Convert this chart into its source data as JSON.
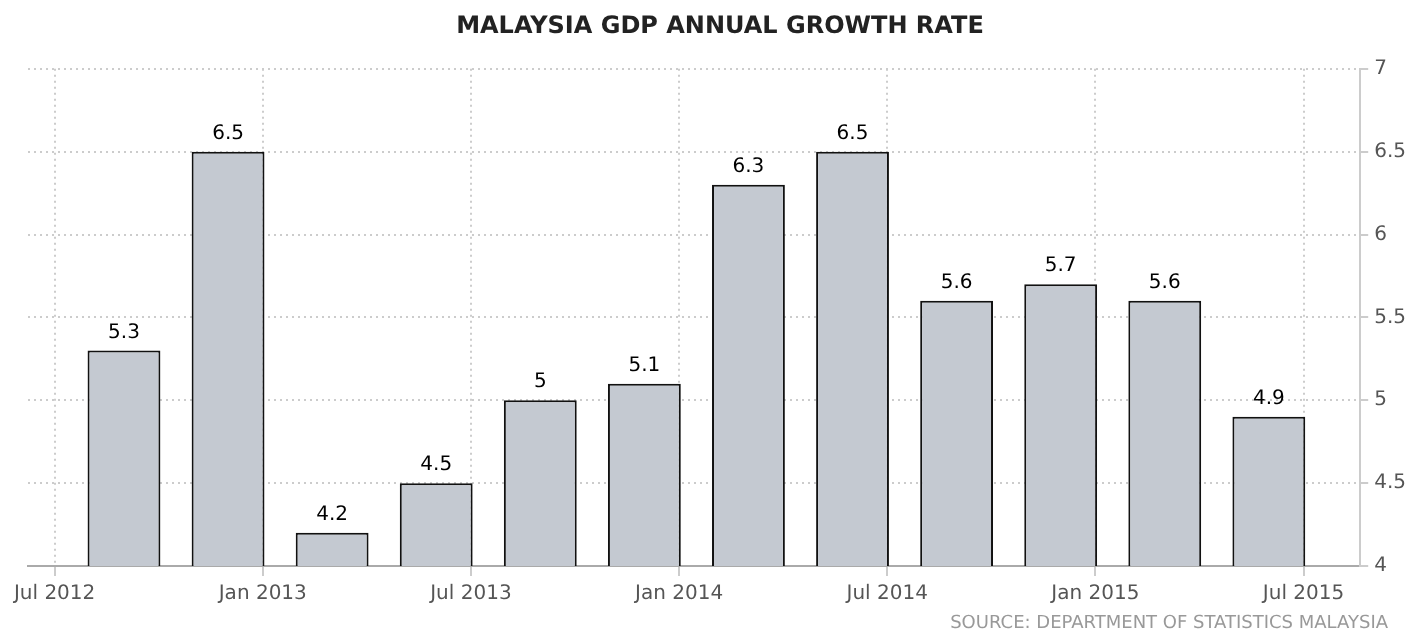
{
  "chart_data": {
    "type": "bar",
    "title": "MALAYSIA GDP ANNUAL GROWTH RATE",
    "x": [
      "2012-09",
      "2012-12",
      "2013-03",
      "2013-06",
      "2013-09",
      "2013-12",
      "2014-03",
      "2014-06",
      "2014-09",
      "2014-12",
      "2015-03",
      "2015-06"
    ],
    "values": [
      5.3,
      6.5,
      4.2,
      4.5,
      5,
      5.1,
      6.3,
      6.5,
      5.6,
      5.7,
      5.6,
      4.9
    ],
    "color": "#c4c9d1",
    "xlim": [
      "2012-06-08",
      "2015-08-20"
    ],
    "xticks": [
      {
        "value": "2012-07",
        "label": "Jul 2012"
      },
      {
        "value": "2013-01",
        "label": "Jan 2013"
      },
      {
        "value": "2013-07",
        "label": "Jul 2013"
      },
      {
        "value": "2014-01",
        "label": "Jan 2014"
      },
      {
        "value": "2014-07",
        "label": "Jul 2014"
      },
      {
        "value": "2015-01",
        "label": "Jan 2015"
      },
      {
        "value": "2015-07",
        "label": "Jul 2015"
      }
    ],
    "ylim": [
      4,
      7
    ],
    "yticks": [
      4,
      4.5,
      5,
      5.5,
      6,
      6.5,
      7
    ],
    "grid": true,
    "data_labels": true,
    "legend": false,
    "annotations": [
      "SOURCE: DEPARTMENT OF STATISTICS MALAYSIA"
    ]
  }
}
